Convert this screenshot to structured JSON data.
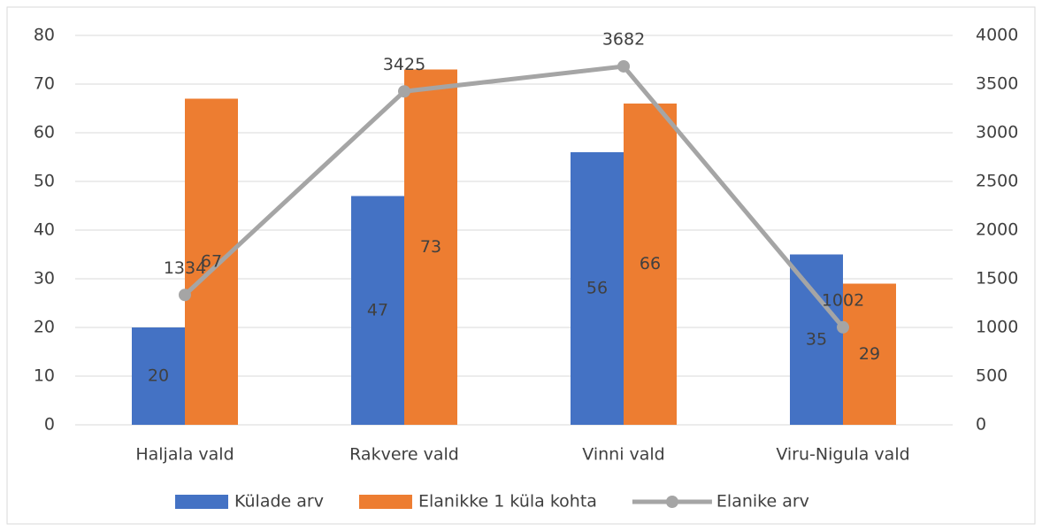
{
  "chart_data": {
    "type": "bar",
    "categories": [
      "Haljala vald",
      "Rakvere vald",
      "Vinni vald",
      "Viru-Nigula vald"
    ],
    "series": [
      {
        "name": "Külade arv",
        "type": "bar",
        "color": "#4472c4",
        "values": [
          20,
          47,
          56,
          35
        ]
      },
      {
        "name": "Elanikke 1 küla kohta",
        "type": "bar",
        "color": "#ed7d31",
        "values": [
          67,
          73,
          66,
          29
        ]
      },
      {
        "name": "Elanike arv",
        "type": "line",
        "axis": "y2",
        "color": "#a5a5a5",
        "values": [
          1334,
          3425,
          3682,
          1002
        ]
      }
    ],
    "ylim": [
      0,
      80
    ],
    "yticks": [
      0,
      10,
      20,
      30,
      40,
      50,
      60,
      70,
      80
    ],
    "y2lim": [
      0,
      4000
    ],
    "y2ticks": [
      0,
      500,
      1000,
      1500,
      2000,
      2500,
      3000,
      3500,
      4000
    ],
    "grid": true,
    "legend": "bottom"
  }
}
